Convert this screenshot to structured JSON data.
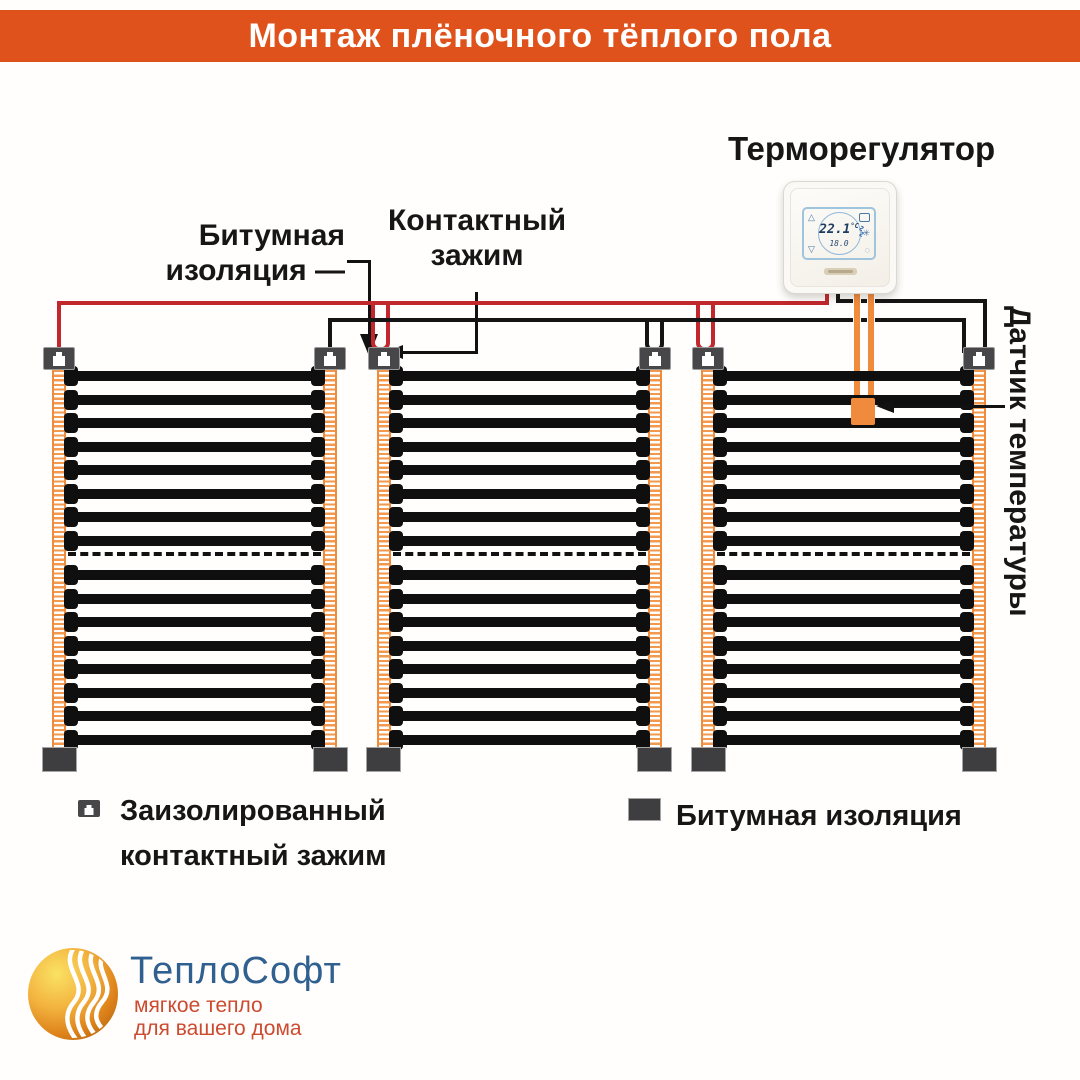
{
  "header": {
    "title": "Монтаж плёночного тёплого пола",
    "bg_color": "#E0521C",
    "text_color": "#FFFFFF"
  },
  "labels": {
    "thermostat": "Терморегулятор",
    "bitumen_callout": "Битумная\nизоляция —",
    "clamp_callout": "Контактный\nзажим",
    "temp_sensor": "Датчик температуры"
  },
  "thermostat_display": {
    "temperature": "22.1",
    "unit": "°C",
    "setpoint": "18.0"
  },
  "legend": {
    "items": [
      {
        "icon": "insulated-clamp-icon",
        "label": "Заизолированный\nконтактный зажим"
      },
      {
        "icon": "bitumen-icon",
        "label": "Битумная изоляция"
      }
    ]
  },
  "logo": {
    "name": "ТеплоСофт",
    "tagline": "мягкое тепло\nдля вашего дома",
    "blue": "#30608F",
    "red": "#CC4B30"
  },
  "diagram": {
    "mat_count": 3,
    "stripe_rows_per_mat": 16,
    "has_cut_line": true,
    "colors": {
      "wire_red": "#C1272D",
      "wire_black": "#141414",
      "bus_orange": "#F2984F",
      "bus_border": "#EE8B3D",
      "film_stripe": "#0F0F0F",
      "clamp_gray": "#47474A",
      "bitumen_gray": "#3E3E40",
      "sensor_orange": "#F08A3C",
      "lcd_blue": "#C4E3F7"
    }
  }
}
